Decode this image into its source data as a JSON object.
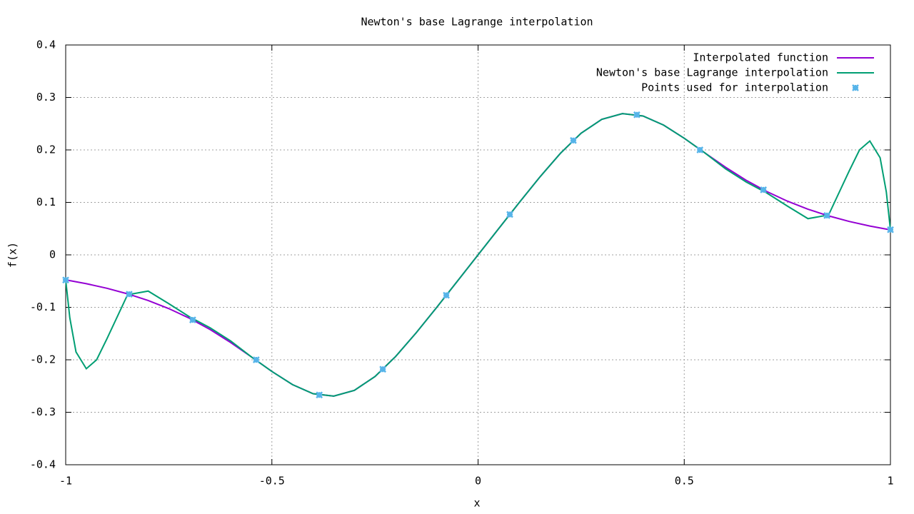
{
  "chart_data": {
    "type": "line",
    "title": "Newton's base Lagrange interpolation",
    "xlabel": "x",
    "ylabel": "f(x)",
    "xlim": [
      -1,
      1
    ],
    "ylim": [
      -0.4,
      0.4
    ],
    "xticks": [
      -1,
      -0.5,
      0,
      0.5,
      1
    ],
    "yticks": [
      -0.4,
      -0.3,
      -0.2,
      -0.1,
      0,
      0.1,
      0.2,
      0.3,
      0.4
    ],
    "grid": true,
    "legend": "top-right",
    "series": [
      {
        "name": "Interpolated function",
        "type": "line",
        "color": "#9400d3",
        "x": [
          -1,
          -0.95,
          -0.9,
          -0.85,
          -0.8,
          -0.75,
          -0.7,
          -0.65,
          -0.6,
          -0.55,
          -0.5,
          -0.45,
          -0.4,
          -0.35,
          -0.3,
          -0.25,
          -0.2,
          -0.15,
          -0.1,
          -0.05,
          0,
          0.05,
          0.1,
          0.15,
          0.2,
          0.25,
          0.3,
          0.35,
          0.4,
          0.45,
          0.5,
          0.55,
          0.6,
          0.65,
          0.7,
          0.75,
          0.8,
          0.85,
          0.9,
          0.95,
          1
        ],
        "values": [
          -0.0476,
          -0.0549,
          -0.0637,
          -0.0743,
          -0.087,
          -0.1024,
          -0.1207,
          -0.1422,
          -0.167,
          -0.1943,
          -0.2222,
          -0.2473,
          -0.2646,
          -0.2692,
          -0.2582,
          -0.2319,
          -0.1938,
          -0.1485,
          -0.0998,
          -0.05,
          0,
          0.05,
          0.0998,
          0.1485,
          0.1938,
          0.2319,
          0.2582,
          0.2692,
          0.2646,
          0.2473,
          0.2222,
          0.1943,
          0.167,
          0.1422,
          0.1207,
          0.1024,
          0.087,
          0.0743,
          0.0637,
          0.0549,
          0.0476
        ]
      },
      {
        "name": "Newton's base Lagrange interpolation",
        "type": "line",
        "color": "#009e73",
        "x": [
          -1,
          -0.99,
          -0.975,
          -0.95,
          -0.925,
          -0.9,
          -0.85,
          -0.8,
          -0.75,
          -0.7,
          -0.65,
          -0.6,
          -0.55,
          -0.5,
          -0.45,
          -0.4,
          -0.35,
          -0.3,
          -0.25,
          -0.2,
          -0.15,
          -0.1,
          -0.05,
          0,
          0.05,
          0.1,
          0.15,
          0.2,
          0.25,
          0.3,
          0.35,
          0.4,
          0.45,
          0.5,
          0.55,
          0.6,
          0.65,
          0.7,
          0.75,
          0.8,
          0.85,
          0.9,
          0.925,
          0.95,
          0.975,
          0.99,
          1
        ],
        "values": [
          -0.0476,
          -0.12,
          -0.185,
          -0.217,
          -0.2,
          -0.16,
          -0.076,
          -0.069,
          -0.093,
          -0.118,
          -0.139,
          -0.164,
          -0.1943,
          -0.2222,
          -0.2473,
          -0.2646,
          -0.2692,
          -0.2582,
          -0.2319,
          -0.1938,
          -0.1485,
          -0.0998,
          -0.05,
          0,
          0.05,
          0.0998,
          0.1485,
          0.1938,
          0.2319,
          0.2582,
          0.2692,
          0.2646,
          0.2473,
          0.2222,
          0.1943,
          0.164,
          0.139,
          0.118,
          0.093,
          0.069,
          0.076,
          0.16,
          0.2,
          0.217,
          0.185,
          0.12,
          0.0476
        ]
      },
      {
        "name": "Points used for interpolation",
        "type": "scatter",
        "color": "#56b4e9",
        "x": [
          -1,
          -0.846,
          -0.692,
          -0.538,
          -0.385,
          -0.231,
          -0.077,
          0.077,
          0.231,
          0.385,
          0.538,
          0.692,
          0.846,
          1
        ],
        "values": [
          -0.048,
          -0.075,
          -0.124,
          -0.2,
          -0.267,
          -0.218,
          -0.077,
          0.077,
          0.218,
          0.267,
          0.2,
          0.124,
          0.075,
          0.048
        ]
      }
    ]
  }
}
